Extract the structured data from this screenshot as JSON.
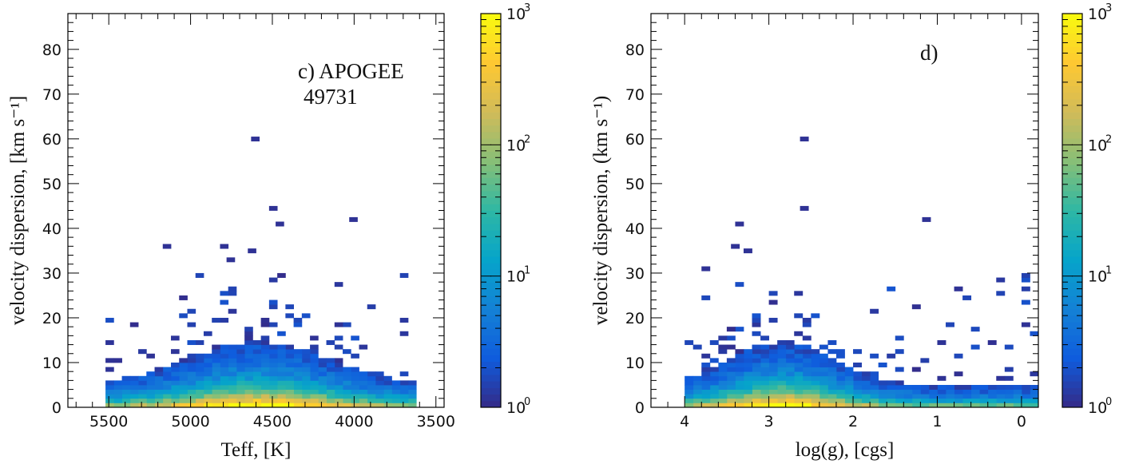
{
  "colormap": {
    "stops": [
      "#352a87",
      "#0f5cdd",
      "#1481d6",
      "#06a4ca",
      "#2eb7a4",
      "#87bf77",
      "#d1bb59",
      "#fec832",
      "#f9fb0e"
    ],
    "min_exponent": 0,
    "max_exponent": 3,
    "tick_labels": [
      "10",
      "10",
      "10",
      "10"
    ],
    "tick_exponents": [
      "0",
      "1",
      "2",
      "3"
    ]
  },
  "chart_data": [
    {
      "type": "heatmap",
      "title": "",
      "annotation_lines": [
        "c) APOGEE",
        "49731"
      ],
      "xlabel": "Teff, [K]",
      "ylabel": "velocity dispersion, [km s⁻¹]",
      "x_inverted": true,
      "xlim": [
        5750,
        3450
      ],
      "ylim": [
        0,
        88
      ],
      "x_ticks": [
        5500,
        5000,
        4500,
        4000,
        3500
      ],
      "y_ticks": [
        0,
        10,
        20,
        30,
        40,
        50,
        60,
        70,
        80
      ],
      "colorbar": "log10 counts, 10^0 to 10^3",
      "x_range_of_data": [
        3620,
        5500
      ],
      "bin_width_x": 50,
      "bin_height_y": 1,
      "outlier_points": [
        [
          4580,
          59.5
        ],
        [
          4470,
          44
        ],
        [
          4430,
          40.5
        ],
        [
          3980,
          41.5
        ],
        [
          5120,
          35.5
        ],
        [
          4770,
          35.5
        ],
        [
          4600,
          34.5
        ],
        [
          4730,
          32.5
        ]
      ]
    },
    {
      "type": "heatmap",
      "title": "",
      "annotation_lines": [
        "d)"
      ],
      "xlabel": "log(g), [cgs]",
      "ylabel": "velocity dispersion, (km s⁻¹)",
      "x_inverted": true,
      "xlim": [
        4.4,
        -0.2
      ],
      "ylim": [
        0,
        88
      ],
      "x_ticks": [
        4,
        3,
        2,
        1,
        0
      ],
      "y_ticks": [
        0,
        10,
        20,
        30,
        40,
        50,
        60,
        70,
        80
      ],
      "colorbar": "log10 counts, 10^0 to 10^3",
      "x_range_of_data": [
        -0.2,
        3.95
      ],
      "bin_width_x": 0.1,
      "bin_height_y": 1,
      "outlier_points": [
        [
          2.53,
          59.5
        ],
        [
          2.53,
          44
        ],
        [
          1.08,
          41.5
        ],
        [
          3.3,
          40.5
        ],
        [
          3.35,
          35.5
        ],
        [
          3.2,
          34.5
        ],
        [
          3.7,
          30.5
        ]
      ]
    }
  ]
}
